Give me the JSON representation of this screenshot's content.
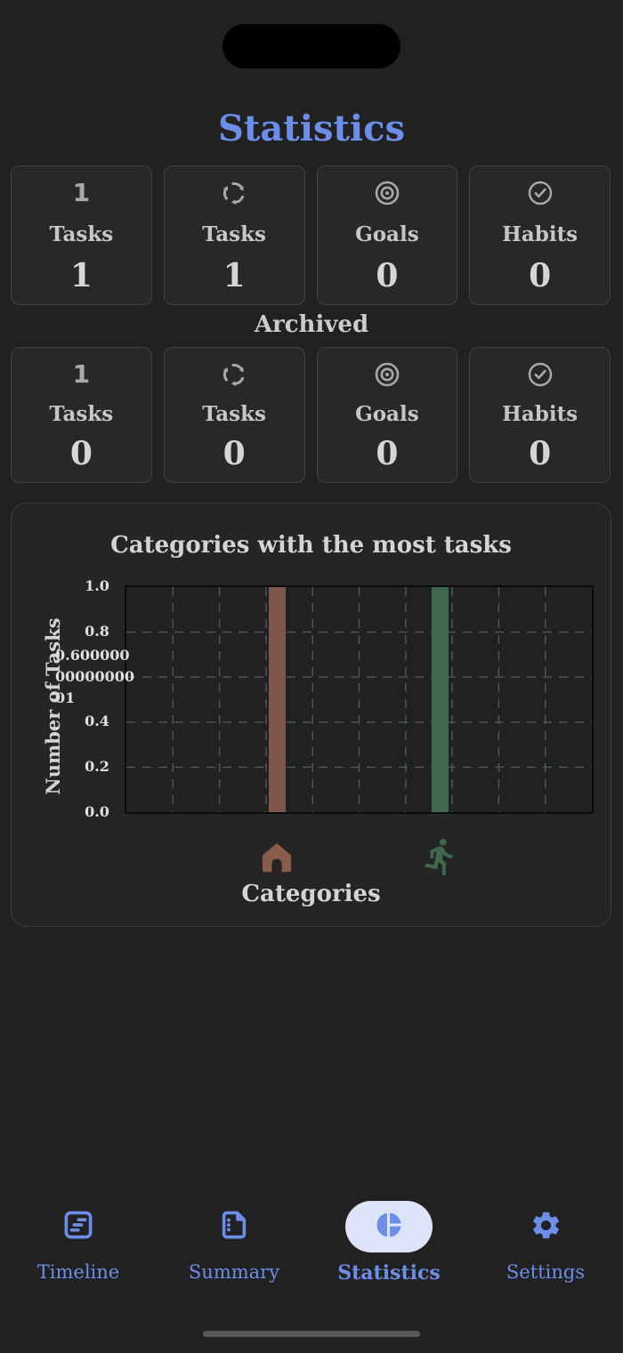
{
  "page": {
    "title": "Statistics"
  },
  "stats": {
    "active": [
      {
        "icon": "digit-one-icon",
        "label": "Tasks",
        "value": "1"
      },
      {
        "icon": "recycle-icon",
        "label": "Tasks",
        "value": "1"
      },
      {
        "icon": "target-icon",
        "label": "Goals",
        "value": "0"
      },
      {
        "icon": "check-circle-icon",
        "label": "Habits",
        "value": "0"
      }
    ],
    "archived_heading": "Archived",
    "archived": [
      {
        "icon": "digit-one-icon",
        "label": "Tasks",
        "value": "0"
      },
      {
        "icon": "recycle-icon",
        "label": "Tasks",
        "value": "0"
      },
      {
        "icon": "target-icon",
        "label": "Goals",
        "value": "0"
      },
      {
        "icon": "check-circle-icon",
        "label": "Habits",
        "value": "0"
      }
    ],
    "digit_icon_glyph": "1"
  },
  "chart_data": {
    "type": "bar",
    "title": "Categories with the most tasks",
    "xlabel": "Categories",
    "ylabel": "Number of Tasks",
    "categories": [
      "home",
      "running"
    ],
    "category_icons": [
      "house-icon",
      "runner-icon"
    ],
    "values": [
      1,
      1
    ],
    "bar_colors": [
      "#7e574a",
      "#41684e"
    ],
    "ylim": [
      0,
      1
    ],
    "yticks": [
      "1.0",
      "0.8",
      "0.6000000000000001",
      "0.4",
      "0.2",
      "0.0"
    ],
    "grid": "dashed",
    "legend": "none"
  },
  "tabbar": {
    "items": [
      {
        "label": "Timeline",
        "icon": "timeline-icon",
        "selected": false
      },
      {
        "label": "Summary",
        "icon": "summary-icon",
        "selected": false
      },
      {
        "label": "Statistics",
        "icon": "pie-chart-icon",
        "selected": true
      },
      {
        "label": "Settings",
        "icon": "settings-icon",
        "selected": false
      }
    ]
  },
  "colors": {
    "background": "#212121",
    "card_background": "#282828",
    "accent_blue": "#6b8ee9",
    "selected_pill": "#dde4f9",
    "bar_home": "#7e574a",
    "bar_running": "#41684e",
    "icon_gray": "#a9a9a9"
  }
}
